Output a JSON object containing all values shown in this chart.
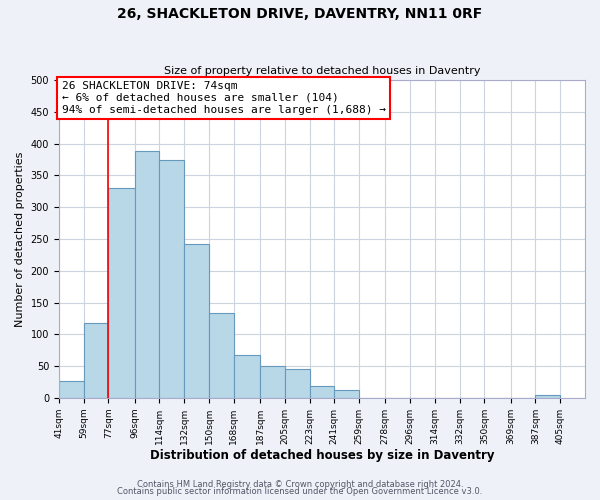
{
  "title": "26, SHACKLETON DRIVE, DAVENTRY, NN11 0RF",
  "subtitle": "Size of property relative to detached houses in Daventry",
  "xlabel": "Distribution of detached houses by size in Daventry",
  "ylabel": "Number of detached properties",
  "bar_left_edges": [
    41,
    59,
    77,
    96,
    114,
    132,
    150,
    168,
    187,
    205,
    223,
    241,
    259,
    278,
    296,
    314,
    332,
    350,
    369,
    387
  ],
  "bar_heights": [
    27,
    118,
    330,
    388,
    375,
    242,
    133,
    68,
    50,
    45,
    18,
    12,
    0,
    0,
    0,
    0,
    0,
    0,
    0,
    5
  ],
  "bar_right_edges": [
    59,
    77,
    96,
    114,
    132,
    150,
    168,
    187,
    205,
    223,
    241,
    259,
    278,
    296,
    314,
    332,
    350,
    369,
    387,
    405
  ],
  "bar_color": "#b8d8e8",
  "bar_edgecolor": "#6699bb",
  "tick_labels": [
    "41sqm",
    "59sqm",
    "77sqm",
    "96sqm",
    "114sqm",
    "132sqm",
    "150sqm",
    "168sqm",
    "187sqm",
    "205sqm",
    "223sqm",
    "241sqm",
    "259sqm",
    "278sqm",
    "296sqm",
    "314sqm",
    "332sqm",
    "350sqm",
    "369sqm",
    "387sqm",
    "405sqm"
  ],
  "tick_positions": [
    41,
    59,
    77,
    96,
    114,
    132,
    150,
    168,
    187,
    205,
    223,
    241,
    259,
    278,
    296,
    314,
    332,
    350,
    369,
    387,
    405
  ],
  "ylim": [
    0,
    500
  ],
  "yticks": [
    0,
    50,
    100,
    150,
    200,
    250,
    300,
    350,
    400,
    450,
    500
  ],
  "xlim_left": 41,
  "xlim_right": 423,
  "property_line_x": 77,
  "annotation_title": "26 SHACKLETON DRIVE: 74sqm",
  "annotation_line1": "← 6% of detached houses are smaller (104)",
  "annotation_line2": "94% of semi-detached houses are larger (1,688) →",
  "footer_line1": "Contains HM Land Registry data © Crown copyright and database right 2024.",
  "footer_line2": "Contains public sector information licensed under the Open Government Licence v3.0.",
  "background_color": "#eef2f8",
  "plot_bg_color": "#ffffff",
  "grid_color": "#ccd4e0",
  "title_fontsize": 10,
  "subtitle_fontsize": 8,
  "ylabel_fontsize": 8,
  "xlabel_fontsize": 8.5,
  "tick_fontsize": 6.5,
  "annotation_fontsize": 8,
  "footer_fontsize": 6
}
